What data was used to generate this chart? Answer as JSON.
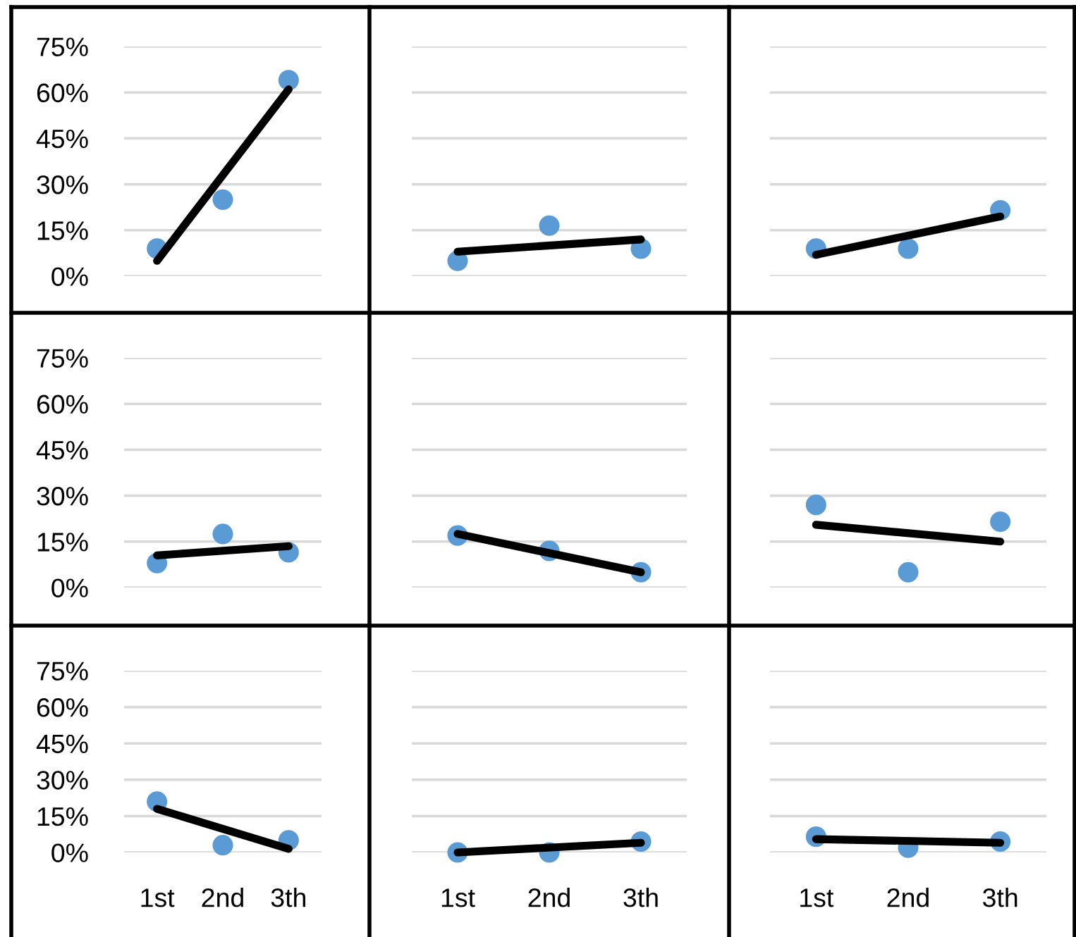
{
  "chart_data": [
    {
      "type": "scatter",
      "categories": [
        "1st",
        "2nd",
        "3th"
      ],
      "ylim": [
        0,
        75
      ],
      "yticks": [
        {
          "value": 0,
          "label": "0%"
        },
        {
          "value": 15,
          "label": "15%"
        },
        {
          "value": 30,
          "label": "30%"
        },
        {
          "value": 45,
          "label": "45%"
        },
        {
          "value": 60,
          "label": "60%"
        },
        {
          "value": 75,
          "label": "75%"
        }
      ],
      "grid": "y",
      "tick_labels": "y",
      "marker": "circle",
      "series": [
        {
          "color": "#5b9bd5",
          "values": [
            9,
            25,
            64
          ]
        },
        {
          "type": "line",
          "marker": "none",
          "color": "#000000",
          "x": [
            "1st",
            "3th"
          ],
          "values": [
            5,
            61
          ]
        }
      ]
    },
    {
      "type": "scatter",
      "categories": [
        "1st",
        "2nd",
        "3th"
      ],
      "ylim": [
        0,
        75
      ],
      "yticks": [
        {
          "value": 0,
          "label": null
        },
        {
          "value": 15,
          "label": null
        },
        {
          "value": 30,
          "label": null
        },
        {
          "value": 45,
          "label": null
        },
        {
          "value": 60,
          "label": null
        },
        {
          "value": 75,
          "label": null
        }
      ],
      "grid": "y",
      "tick_labels": false,
      "marker": "circle",
      "series": [
        {
          "color": "#5b9bd5",
          "values": [
            5,
            16.5,
            9
          ]
        },
        {
          "type": "line",
          "marker": "none",
          "color": "#000000",
          "x": [
            "1st",
            "3th"
          ],
          "values": [
            8,
            12
          ]
        }
      ]
    },
    {
      "type": "scatter",
      "categories": [
        "1st",
        "2nd",
        "3th"
      ],
      "ylim": [
        0,
        75
      ],
      "yticks": [
        {
          "value": 0,
          "label": null
        },
        {
          "value": 15,
          "label": null
        },
        {
          "value": 30,
          "label": null
        },
        {
          "value": 45,
          "label": null
        },
        {
          "value": 60,
          "label": null
        },
        {
          "value": 75,
          "label": null
        }
      ],
      "grid": "y",
      "tick_labels": false,
      "marker": "circle",
      "series": [
        {
          "color": "#5b9bd5",
          "values": [
            9,
            9,
            21.5
          ]
        },
        {
          "type": "line",
          "marker": "none",
          "color": "#000000",
          "x": [
            "1st",
            "3th"
          ],
          "values": [
            7,
            19.5
          ]
        }
      ]
    },
    {
      "type": "scatter",
      "categories": [
        "1st",
        "2nd",
        "3th"
      ],
      "ylim": [
        0,
        75
      ],
      "yticks": [
        {
          "value": 0,
          "label": "0%"
        },
        {
          "value": 15,
          "label": "15%"
        },
        {
          "value": 30,
          "label": "30%"
        },
        {
          "value": 45,
          "label": "45%"
        },
        {
          "value": 60,
          "label": "60%"
        },
        {
          "value": 75,
          "label": "75%"
        }
      ],
      "grid": "y",
      "tick_labels": "y",
      "marker": "circle",
      "series": [
        {
          "color": "#5b9bd5",
          "values": [
            8,
            17.5,
            11.5
          ]
        },
        {
          "type": "line",
          "marker": "none",
          "color": "#000000",
          "x": [
            "1st",
            "3th"
          ],
          "values": [
            10.5,
            13.5
          ]
        }
      ]
    },
    {
      "type": "scatter",
      "categories": [
        "1st",
        "2nd",
        "3th"
      ],
      "ylim": [
        0,
        75
      ],
      "yticks": [
        {
          "value": 0,
          "label": null
        },
        {
          "value": 15,
          "label": null
        },
        {
          "value": 30,
          "label": null
        },
        {
          "value": 45,
          "label": null
        },
        {
          "value": 60,
          "label": null
        },
        {
          "value": 75,
          "label": null
        }
      ],
      "grid": "y",
      "tick_labels": false,
      "marker": "circle",
      "series": [
        {
          "color": "#5b9bd5",
          "values": [
            17,
            12,
            5
          ]
        },
        {
          "type": "line",
          "marker": "none",
          "color": "#000000",
          "x": [
            "1st",
            "3th"
          ],
          "values": [
            17.5,
            5
          ]
        }
      ]
    },
    {
      "type": "scatter",
      "categories": [
        "1st",
        "2nd",
        "3th"
      ],
      "ylim": [
        0,
        75
      ],
      "yticks": [
        {
          "value": 0,
          "label": null
        },
        {
          "value": 15,
          "label": null
        },
        {
          "value": 30,
          "label": null
        },
        {
          "value": 45,
          "label": null
        },
        {
          "value": 60,
          "label": null
        },
        {
          "value": 75,
          "label": null
        }
      ],
      "grid": "y",
      "tick_labels": false,
      "marker": "circle",
      "series": [
        {
          "color": "#5b9bd5",
          "values": [
            27,
            5,
            21.5
          ]
        },
        {
          "type": "line",
          "marker": "none",
          "color": "#000000",
          "x": [
            "1st",
            "3th"
          ],
          "values": [
            20.5,
            15
          ]
        }
      ]
    },
    {
      "type": "scatter",
      "categories": [
        "1st",
        "2nd",
        "3th"
      ],
      "ylim": [
        0,
        75
      ],
      "yticks": [
        {
          "value": 0,
          "label": "0%"
        },
        {
          "value": 15,
          "label": "15%"
        },
        {
          "value": 30,
          "label": "30%"
        },
        {
          "value": 45,
          "label": "45%"
        },
        {
          "value": 60,
          "label": "60%"
        },
        {
          "value": 75,
          "label": "75%"
        }
      ],
      "grid": "y",
      "marker": "circle",
      "series": [
        {
          "color": "#5b9bd5",
          "values": [
            21,
            3,
            5
          ]
        },
        {
          "type": "line",
          "marker": "none",
          "color": "#000000",
          "x": [
            "1st",
            "3th"
          ],
          "values": [
            18,
            1.5
          ]
        }
      ]
    },
    {
      "type": "scatter",
      "categories": [
        "1st",
        "2nd",
        "3th"
      ],
      "ylim": [
        0,
        75
      ],
      "yticks": [
        {
          "value": 0,
          "label": null
        },
        {
          "value": 15,
          "label": null
        },
        {
          "value": 30,
          "label": null
        },
        {
          "value": 45,
          "label": null
        },
        {
          "value": 60,
          "label": null
        },
        {
          "value": 75,
          "label": null
        }
      ],
      "grid": "y",
      "tick_labels": "x",
      "marker": "circle",
      "series": [
        {
          "color": "#5b9bd5",
          "values": [
            0,
            0,
            4.5
          ]
        },
        {
          "type": "line",
          "marker": "none",
          "color": "#000000",
          "x": [
            "1st",
            "3th"
          ],
          "values": [
            0,
            4
          ]
        }
      ]
    },
    {
      "type": "scatter",
      "categories": [
        "1st",
        "2nd",
        "3th"
      ],
      "ylim": [
        0,
        75
      ],
      "yticks": [
        {
          "value": 0,
          "label": null
        },
        {
          "value": 15,
          "label": null
        },
        {
          "value": 30,
          "label": null
        },
        {
          "value": 45,
          "label": null
        },
        {
          "value": 60,
          "label": null
        },
        {
          "value": 75,
          "label": null
        }
      ],
      "grid": "y",
      "tick_labels": "x",
      "marker": "circle",
      "series": [
        {
          "color": "#5b9bd5",
          "values": [
            6.5,
            2,
            4.5
          ]
        },
        {
          "type": "line",
          "marker": "none",
          "color": "#000000",
          "x": [
            "1st",
            "3th"
          ],
          "values": [
            5.5,
            4
          ]
        }
      ]
    }
  ]
}
